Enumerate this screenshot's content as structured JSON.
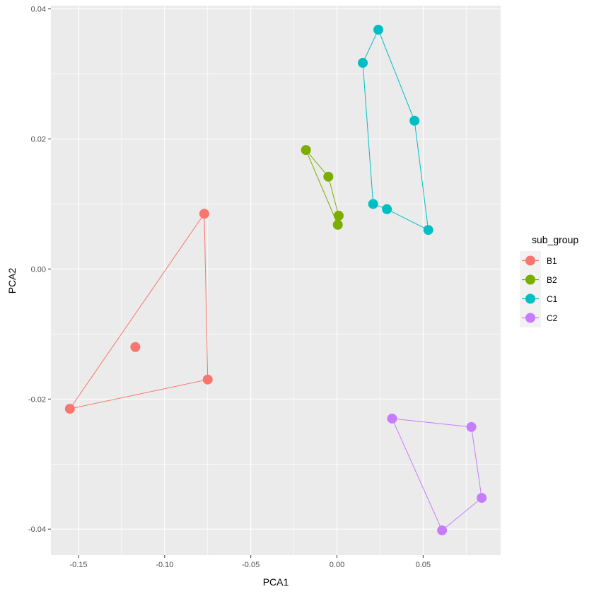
{
  "chart_data": {
    "type": "scatter",
    "title": "",
    "xlabel": "PCA1",
    "ylabel": "PCA2",
    "xlim": [
      -0.166,
      0.095
    ],
    "ylim": [
      -0.044,
      0.0405
    ],
    "x_ticks": [
      -0.15,
      -0.1,
      -0.05,
      0.0,
      0.05
    ],
    "x_tick_labels": [
      "-0.15",
      "-0.10",
      "-0.05",
      "0.00",
      "0.05"
    ],
    "y_ticks": [
      -0.04,
      -0.02,
      0.0,
      0.02,
      0.04
    ],
    "y_tick_labels": [
      "-0.04",
      "-0.02",
      "0.00",
      "0.02",
      "0.04"
    ],
    "grid": true,
    "legend_position": "right",
    "legend_title": "sub_group",
    "hulls": true,
    "series": [
      {
        "name": "B1",
        "color": "#F8766D",
        "points": [
          [
            -0.077,
            0.0085
          ],
          [
            -0.117,
            -0.012
          ],
          [
            -0.075,
            -0.017
          ],
          [
            -0.155,
            -0.0215
          ]
        ],
        "hull": [
          [
            -0.077,
            0.0085
          ],
          [
            -0.075,
            -0.017
          ],
          [
            -0.155,
            -0.0215
          ]
        ]
      },
      {
        "name": "B2",
        "color": "#7CAE00",
        "points": [
          [
            -0.018,
            0.0183
          ],
          [
            -0.005,
            0.0142
          ],
          [
            0.001,
            0.0082
          ],
          [
            0.0005,
            0.0068
          ]
        ],
        "hull": [
          [
            -0.018,
            0.0183
          ],
          [
            -0.005,
            0.0142
          ],
          [
            0.001,
            0.0082
          ],
          [
            0.0005,
            0.0068
          ]
        ]
      },
      {
        "name": "C1",
        "color": "#00BFC4",
        "points": [
          [
            0.015,
            0.0317
          ],
          [
            0.024,
            0.0368
          ],
          [
            0.045,
            0.0228
          ],
          [
            0.021,
            0.01
          ],
          [
            0.029,
            0.0092
          ],
          [
            0.053,
            0.006
          ]
        ],
        "hull": [
          [
            0.015,
            0.0317
          ],
          [
            0.024,
            0.0368
          ],
          [
            0.045,
            0.0228
          ],
          [
            0.053,
            0.006
          ],
          [
            0.029,
            0.0092
          ],
          [
            0.021,
            0.01
          ]
        ]
      },
      {
        "name": "C2",
        "color": "#C77CFF",
        "points": [
          [
            0.032,
            -0.023
          ],
          [
            0.078,
            -0.0243
          ],
          [
            0.084,
            -0.0352
          ],
          [
            0.061,
            -0.0402
          ]
        ],
        "hull": [
          [
            0.032,
            -0.023
          ],
          [
            0.078,
            -0.0243
          ],
          [
            0.084,
            -0.0352
          ],
          [
            0.061,
            -0.0402
          ]
        ]
      }
    ]
  }
}
